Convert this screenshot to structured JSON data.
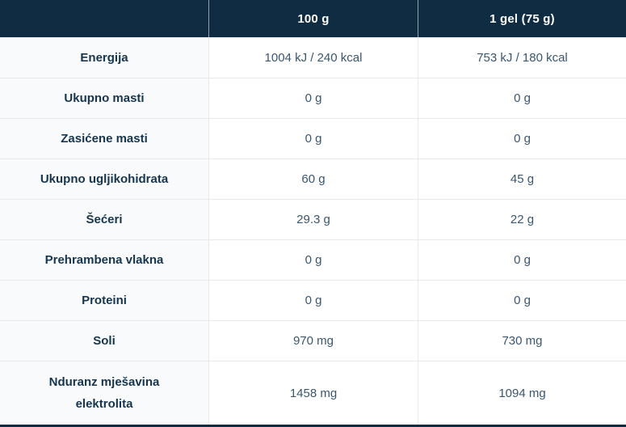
{
  "table": {
    "header": {
      "col_label": "",
      "col_100g": "100 g",
      "col_gel": "1 gel (75 g)"
    },
    "rows": [
      {
        "label": "Energija",
        "per_100g": "1004 kJ / 240 kcal",
        "per_gel": "753 kJ / 180 kcal"
      },
      {
        "label": "Ukupno masti",
        "per_100g": "0 g",
        "per_gel": "0 g"
      },
      {
        "label": "Zasićene masti",
        "per_100g": "0 g",
        "per_gel": "0 g"
      },
      {
        "label": "Ukupno ugljikohidrata",
        "per_100g": "60 g",
        "per_gel": "45 g"
      },
      {
        "label": "Šećeri",
        "per_100g": "29.3 g",
        "per_gel": "22 g"
      },
      {
        "label": "Prehrambena vlakna",
        "per_100g": "0 g",
        "per_gel": "0 g"
      },
      {
        "label": "Proteini",
        "per_100g": "0 g",
        "per_gel": "0 g"
      },
      {
        "label": "Soli",
        "per_100g": "970 mg",
        "per_gel": "730 mg"
      },
      {
        "label": "Nduranz mješavina elektrolita",
        "per_100g": "1458 mg",
        "per_gel": "1094 mg"
      }
    ]
  },
  "colors": {
    "header_bg": "#0f2c42",
    "header_text": "#ffffff",
    "label_text": "#16354e",
    "value_text": "#3a566f",
    "label_column_bg": "#f9fafb",
    "divider": "#e7e9eb",
    "bottom_border": "#0f2c42"
  }
}
